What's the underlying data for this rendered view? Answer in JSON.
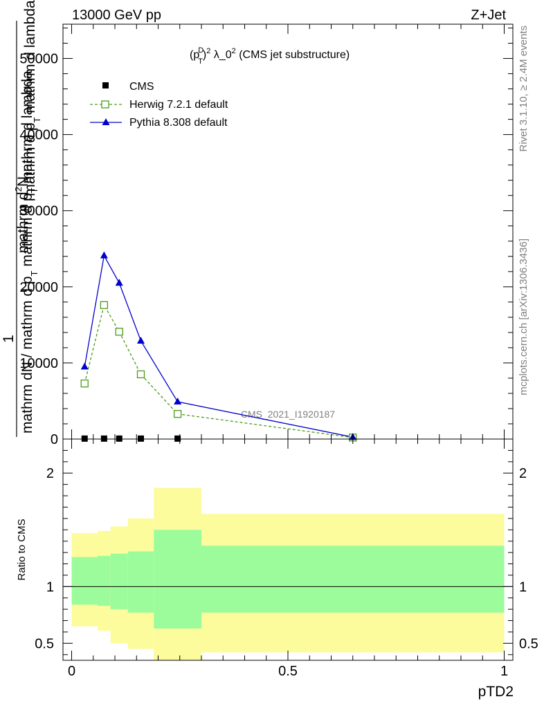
{
  "header": {
    "energy_label": "13000 GeV pp",
    "process_label": "Z+Jet"
  },
  "side": {
    "rivet_label": "Rivet 3.1.10, ≥ 2.4M events",
    "mcplots_label": "mcplots.cern.ch [arXiv:1306.3436]"
  },
  "chart_data": {
    "type": "line",
    "title_parts": {
      "p": "(p",
      "sup1": "D",
      "sub1": "T",
      "close": ")",
      "sup2": "2",
      "mid": " λ_0",
      "sup3": "2",
      "rest": " (CMS jet substructure)"
    },
    "analysis_label": "CMS_2021_I1920187",
    "xlabel": "pTD2",
    "ylabel_top": "1",
    "ylabel_parts": {
      "numer_a": "mathrm d",
      "numer_sup": "2",
      "numer_b": "N",
      "denom_a": "mathrm d p",
      "denom_sub": "T",
      "denom_b": " mathrm d lambda",
      "frac_a": "mathrm dN / mathrm d p",
      "frac_sub": "T",
      "frac_b": " mathrm d p",
      "frac_sub2": "T",
      "frac_c": " mathrm d lambda"
    },
    "ratio_ylabel": "Ratio to CMS",
    "xlim": [
      -0.02,
      1.02
    ],
    "ylim": [
      0,
      54500
    ],
    "ratio_ylim": [
      0.35,
      2.3
    ],
    "x_ticks": [
      0,
      0.5,
      1
    ],
    "x_tick_labels": [
      "0",
      "0.5",
      "1"
    ],
    "y_ticks": [
      0,
      10000,
      20000,
      30000,
      40000,
      50000
    ],
    "y_tick_labels": [
      "0",
      "10000",
      "20000",
      "30000",
      "40000",
      "50000"
    ],
    "ratio_ticks": [
      0.5,
      1,
      2
    ],
    "ratio_tick_labels": [
      "0.5",
      "1",
      "2"
    ],
    "legend": {
      "position": "top-left",
      "entries": [
        "CMS",
        "Herwig 7.2.1 default",
        "Pythia 8.308 default"
      ]
    },
    "series": [
      {
        "name": "CMS",
        "color": "#000000",
        "marker": "square-filled",
        "x": [
          0.03,
          0.075,
          0.11,
          0.16,
          0.245
        ],
        "y": [
          60,
          60,
          60,
          60,
          60
        ]
      },
      {
        "name": "Herwig 7.2.1 default",
        "color": "#4a9a1a",
        "marker": "square-open",
        "dashed": true,
        "x": [
          0.03,
          0.075,
          0.11,
          0.16,
          0.245,
          0.65
        ],
        "y": [
          7300,
          17600,
          14100,
          8500,
          3300,
          200
        ]
      },
      {
        "name": "Pythia 8.308 default",
        "color": "#0000cc",
        "marker": "triangle",
        "x": [
          0.03,
          0.075,
          0.11,
          0.16,
          0.245,
          0.65
        ],
        "y": [
          9500,
          24100,
          20500,
          12900,
          4900,
          250
        ]
      }
    ],
    "ratio_bands": [
      {
        "x0": 0.0,
        "x1": 0.06,
        "inner": [
          0.84,
          1.26
        ],
        "outer": [
          0.65,
          1.47
        ]
      },
      {
        "x0": 0.06,
        "x1": 0.09,
        "inner": [
          0.83,
          1.27
        ],
        "outer": [
          0.61,
          1.49
        ]
      },
      {
        "x0": 0.09,
        "x1": 0.13,
        "inner": [
          0.8,
          1.29
        ],
        "outer": [
          0.5,
          1.53
        ]
      },
      {
        "x0": 0.13,
        "x1": 0.19,
        "inner": [
          0.77,
          1.31
        ],
        "outer": [
          0.45,
          1.6
        ]
      },
      {
        "x0": 0.19,
        "x1": 0.3,
        "inner": [
          0.63,
          1.5
        ],
        "outer": [
          0.35,
          1.87
        ]
      },
      {
        "x0": 0.3,
        "x1": 1.0,
        "inner": [
          0.77,
          1.36
        ],
        "outer": [
          0.42,
          1.64
        ]
      }
    ],
    "colors": {
      "inner_band": "#9cfc9c",
      "outer_band": "#fcfc9c",
      "grid": "none"
    }
  }
}
